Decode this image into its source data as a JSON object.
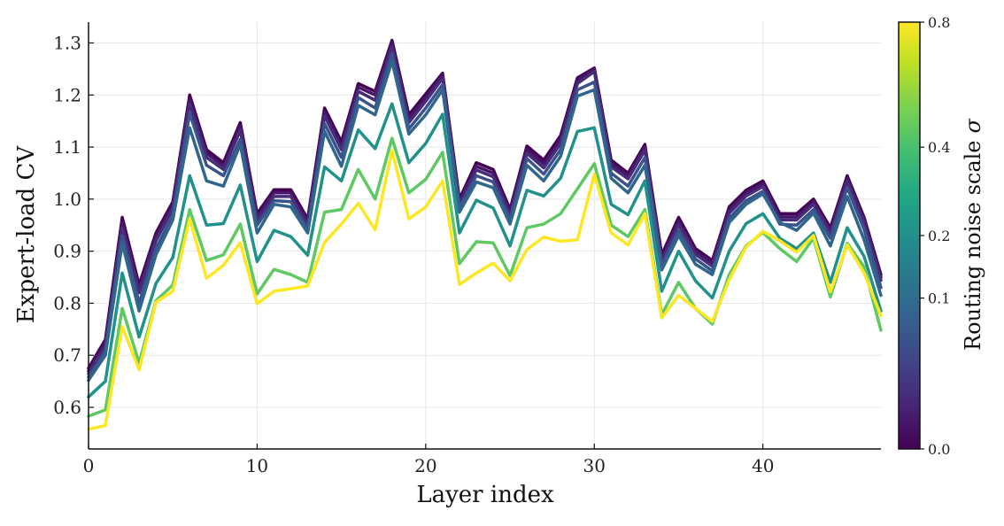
{
  "chart_data": {
    "type": "line",
    "xlabel": "Layer index",
    "ylabel": "Expert-load CV",
    "xlim": [
      0,
      47
    ],
    "ylim": [
      0.52,
      1.34
    ],
    "xticks": [
      0,
      10,
      20,
      30,
      40
    ],
    "yticks": [
      0.6,
      0.7,
      0.8,
      0.9,
      1.0,
      1.1,
      1.2,
      1.3
    ],
    "grid": true,
    "legend": "none",
    "colorbar": {
      "label": "Routing noise scale",
      "symbol": "σ",
      "ticks": [
        "0.0",
        "0.1",
        "0.2",
        "0.4",
        "0.8"
      ],
      "tick_values": [
        0.0,
        0.1,
        0.2,
        0.4,
        0.8
      ],
      "colormap": "viridis",
      "scale": "sqrt"
    },
    "series": [
      {
        "sigma": 0.0,
        "color": "#440154",
        "values": [
          0.675,
          0.73,
          0.965,
          0.835,
          0.935,
          0.995,
          1.2,
          1.095,
          1.07,
          1.147,
          0.972,
          1.018,
          1.018,
          0.962,
          1.175,
          1.11,
          1.222,
          1.207,
          1.305,
          1.162,
          1.202,
          1.242,
          1.0,
          1.07,
          1.057,
          0.98,
          1.102,
          1.075,
          1.122,
          1.233,
          1.252,
          1.075,
          1.05,
          1.105,
          0.893,
          0.965,
          0.905,
          0.882,
          0.985,
          1.017,
          1.035,
          0.972,
          0.972,
          1.0,
          0.945,
          1.045,
          0.965,
          0.855
        ]
      },
      {
        "sigma": 0.01,
        "color": "#481668",
        "values": [
          0.67,
          0.724,
          0.955,
          0.828,
          0.928,
          0.99,
          1.192,
          1.088,
          1.064,
          1.14,
          0.966,
          1.012,
          1.012,
          0.956,
          1.168,
          1.103,
          1.215,
          1.2,
          1.3,
          1.155,
          1.195,
          1.238,
          0.995,
          1.063,
          1.05,
          0.975,
          1.095,
          1.068,
          1.115,
          1.228,
          1.25,
          1.069,
          1.045,
          1.1,
          0.887,
          0.958,
          0.9,
          0.877,
          0.979,
          1.012,
          1.03,
          0.966,
          0.966,
          0.995,
          0.94,
          1.04,
          0.96,
          0.85
        ]
      },
      {
        "sigma": 0.02,
        "color": "#472c7a",
        "values": [
          0.665,
          0.717,
          0.945,
          0.82,
          0.92,
          0.982,
          1.183,
          1.08,
          1.057,
          1.132,
          0.96,
          1.005,
          1.005,
          0.95,
          1.16,
          1.095,
          1.207,
          1.19,
          1.292,
          1.147,
          1.188,
          1.232,
          0.99,
          1.056,
          1.043,
          0.969,
          1.088,
          1.06,
          1.107,
          1.222,
          1.245,
          1.062,
          1.039,
          1.094,
          0.881,
          0.951,
          0.894,
          0.871,
          0.973,
          1.006,
          1.024,
          0.96,
          0.96,
          0.99,
          0.934,
          1.034,
          0.954,
          0.844
        ]
      },
      {
        "sigma": 0.05,
        "color": "#3b528b",
        "values": [
          0.658,
          0.708,
          0.93,
          0.8,
          0.905,
          0.97,
          1.165,
          1.065,
          1.045,
          1.115,
          0.95,
          0.997,
          0.995,
          0.942,
          1.145,
          1.08,
          1.195,
          1.175,
          1.28,
          1.135,
          1.175,
          1.22,
          0.983,
          1.045,
          1.033,
          0.96,
          1.078,
          1.048,
          1.095,
          1.21,
          1.225,
          1.05,
          1.025,
          1.08,
          0.872,
          0.94,
          0.885,
          0.862,
          0.963,
          0.997,
          1.015,
          0.952,
          0.95,
          0.98,
          0.925,
          1.022,
          0.942,
          0.83
        ]
      },
      {
        "sigma": 0.1,
        "color": "#30668e",
        "values": [
          0.652,
          0.7,
          0.915,
          0.785,
          0.893,
          0.96,
          1.137,
          1.035,
          1.025,
          1.105,
          0.935,
          0.99,
          0.985,
          0.935,
          1.13,
          1.063,
          1.18,
          1.162,
          1.265,
          1.125,
          1.162,
          1.21,
          0.975,
          1.033,
          1.022,
          0.952,
          1.065,
          1.035,
          1.082,
          1.198,
          1.21,
          1.04,
          1.012,
          1.065,
          0.864,
          0.93,
          0.875,
          0.855,
          0.955,
          0.99,
          1.01,
          0.955,
          0.94,
          0.973,
          0.91,
          1.005,
          0.922,
          0.815
        ]
      },
      {
        "sigma": 0.2,
        "color": "#21918c",
        "values": [
          0.62,
          0.65,
          0.858,
          0.735,
          0.838,
          0.888,
          1.045,
          0.95,
          0.953,
          1.027,
          0.88,
          0.94,
          0.928,
          0.892,
          1.062,
          1.035,
          1.133,
          1.097,
          1.183,
          1.07,
          1.107,
          1.163,
          0.935,
          0.998,
          0.983,
          0.91,
          1.017,
          1.006,
          1.04,
          1.13,
          1.137,
          0.99,
          0.97,
          1.035,
          0.823,
          0.9,
          0.843,
          0.81,
          0.9,
          0.953,
          0.972,
          0.925,
          0.905,
          0.935,
          0.84,
          0.945,
          0.89,
          0.785
        ]
      },
      {
        "sigma": 0.4,
        "color": "#5ec962",
        "values": [
          0.583,
          0.595,
          0.79,
          0.685,
          0.805,
          0.835,
          0.98,
          0.882,
          0.893,
          0.952,
          0.818,
          0.865,
          0.855,
          0.84,
          0.975,
          0.98,
          1.057,
          1.0,
          1.117,
          1.012,
          1.038,
          1.09,
          0.876,
          0.918,
          0.916,
          0.853,
          0.945,
          0.952,
          0.972,
          1.02,
          1.068,
          0.95,
          0.928,
          0.98,
          0.778,
          0.84,
          0.79,
          0.76,
          0.855,
          0.91,
          0.936,
          0.905,
          0.88,
          0.925,
          0.812,
          0.915,
          0.87,
          0.748
        ]
      },
      {
        "sigma": 0.8,
        "color": "#fde725",
        "values": [
          0.558,
          0.565,
          0.755,
          0.672,
          0.802,
          0.823,
          0.962,
          0.848,
          0.873,
          0.916,
          0.799,
          0.823,
          0.828,
          0.833,
          0.917,
          0.952,
          0.992,
          0.941,
          1.093,
          0.962,
          0.985,
          1.035,
          0.836,
          0.858,
          0.877,
          0.843,
          0.903,
          0.927,
          0.919,
          0.922,
          1.048,
          0.935,
          0.912,
          0.972,
          0.772,
          0.815,
          0.79,
          0.765,
          0.845,
          0.908,
          0.938,
          0.92,
          0.898,
          0.93,
          0.822,
          0.912,
          0.858,
          0.776
        ]
      }
    ]
  }
}
